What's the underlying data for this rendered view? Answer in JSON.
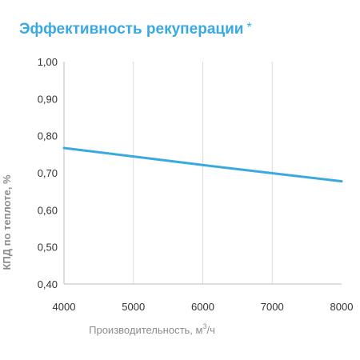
{
  "title": "Эффективность рекуперации",
  "title_mark": "*",
  "colors": {
    "title": "#3aa9e0",
    "line": "#3aa9e0",
    "grid": "#dcdcdc",
    "axis_title": "#8c8c8c"
  },
  "chart_data": {
    "type": "line",
    "xlabel": "Производительность, м",
    "xlabel_sup": "3",
    "xlabel_tail": "/ч",
    "ylabel": "КПД по теплоте, %",
    "xlim": [
      4000,
      8000
    ],
    "ylim": [
      0.4,
      1.0
    ],
    "x_ticks": [
      4000,
      5000,
      6000,
      7000,
      8000
    ],
    "y_ticks": [
      0.4,
      0.5,
      0.6,
      0.7,
      0.8,
      0.9,
      1.0
    ],
    "x_tick_labels": [
      "4000",
      "5000",
      "6000",
      "7000",
      "8000"
    ],
    "y_tick_labels": [
      "0,40",
      "0,50",
      "0,60",
      "0,70",
      "0,80",
      "0,90",
      "1,00"
    ],
    "grid": "vertical",
    "series": [
      {
        "x": [
          4000,
          5000,
          6000,
          7000,
          8000
        ],
        "y": [
          0.767,
          0.744,
          0.721,
          0.699,
          0.677
        ]
      }
    ]
  }
}
